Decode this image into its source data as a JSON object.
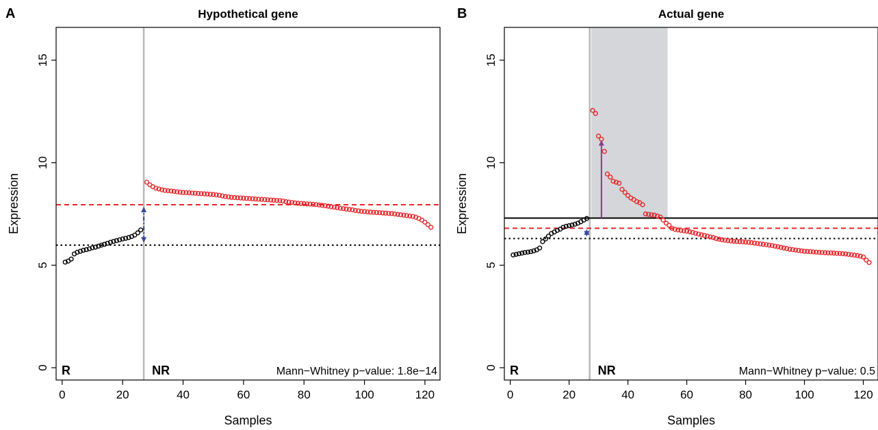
{
  "chart_data": [
    {
      "panel_label": "A",
      "type": "scatter",
      "title": "Hypothetical gene",
      "xlabel": "Samples",
      "ylabel": "Expression",
      "xlim": [
        -2,
        125
      ],
      "ylim": [
        -0.6,
        16.6
      ],
      "xticks": [
        0,
        20,
        40,
        60,
        80,
        100,
        120
      ],
      "yticks": [
        0,
        5,
        10,
        15
      ],
      "grid": false,
      "divider_x": 27,
      "group_labels": [
        "R",
        "NR"
      ],
      "annotation": "Mann−Whitney p−value: 1.8e−14",
      "hlines": [
        {
          "y": 7.95,
          "color": "#e8262a",
          "style": "dashed"
        },
        {
          "y": 5.98,
          "color": "#000000",
          "style": "dotted"
        }
      ],
      "arrows": [
        {
          "x": 27,
          "y1": 6.1,
          "y2": 7.85,
          "color": "#3b4a9e",
          "style": "dashdot",
          "double": true
        }
      ],
      "colors": {
        "R": "#000000",
        "NR": "#e8262a",
        "divider": "#b8b8b8"
      },
      "series": [
        {
          "name": "R",
          "x": [
            1,
            2,
            3,
            4,
            5,
            6,
            7,
            8,
            9,
            10,
            11,
            12,
            13,
            14,
            15,
            16,
            17,
            18,
            19,
            20,
            21,
            22,
            23,
            24,
            25,
            26
          ],
          "y": [
            5.15,
            5.2,
            5.3,
            5.55,
            5.63,
            5.68,
            5.73,
            5.76,
            5.8,
            5.85,
            5.88,
            5.93,
            5.98,
            6.02,
            6.07,
            6.12,
            6.16,
            6.2,
            6.24,
            6.28,
            6.31,
            6.35,
            6.4,
            6.47,
            6.58,
            6.72
          ]
        },
        {
          "name": "NR",
          "x": [
            28,
            29,
            30,
            31,
            32,
            33,
            34,
            35,
            36,
            37,
            38,
            39,
            40,
            41,
            42,
            43,
            44,
            45,
            46,
            47,
            48,
            49,
            50,
            51,
            52,
            53,
            54,
            55,
            56,
            57,
            58,
            59,
            60,
            61,
            62,
            63,
            64,
            65,
            66,
            67,
            68,
            69,
            70,
            71,
            72,
            73,
            74,
            75,
            76,
            77,
            78,
            79,
            80,
            81,
            82,
            83,
            84,
            85,
            86,
            87,
            88,
            89,
            90,
            91,
            92,
            93,
            94,
            95,
            96,
            97,
            98,
            99,
            100,
            101,
            102,
            103,
            104,
            105,
            106,
            107,
            108,
            109,
            110,
            111,
            112,
            113,
            114,
            115,
            116,
            117,
            118,
            119,
            120,
            121,
            122
          ],
          "y": [
            9.05,
            8.92,
            8.83,
            8.76,
            8.72,
            8.68,
            8.65,
            8.63,
            8.62,
            8.6,
            8.58,
            8.56,
            8.55,
            8.54,
            8.53,
            8.52,
            8.51,
            8.5,
            8.49,
            8.48,
            8.47,
            8.46,
            8.45,
            8.43,
            8.41,
            8.38,
            8.35,
            8.33,
            8.31,
            8.3,
            8.29,
            8.28,
            8.27,
            8.26,
            8.25,
            8.24,
            8.23,
            8.22,
            8.21,
            8.2,
            8.19,
            8.18,
            8.17,
            8.16,
            8.15,
            8.13,
            8.1,
            8.08,
            8.06,
            8.04,
            8.02,
            8.01,
            8.0,
            7.99,
            7.98,
            7.97,
            7.96,
            7.94,
            7.92,
            7.9,
            7.88,
            7.85,
            7.83,
            7.81,
            7.78,
            7.76,
            7.74,
            7.72,
            7.7,
            7.67,
            7.65,
            7.63,
            7.62,
            7.6,
            7.59,
            7.58,
            7.57,
            7.56,
            7.55,
            7.54,
            7.53,
            7.52,
            7.5,
            7.48,
            7.46,
            7.44,
            7.42,
            7.4,
            7.38,
            7.34,
            7.28,
            7.2,
            7.1,
            6.98,
            6.85
          ]
        }
      ]
    },
    {
      "panel_label": "B",
      "type": "scatter",
      "title": "Actual gene",
      "xlabel": "Samples",
      "ylabel": "Expression",
      "xlim": [
        -2,
        125
      ],
      "ylim": [
        -0.6,
        16.6
      ],
      "xticks": [
        0,
        20,
        40,
        60,
        80,
        100,
        120
      ],
      "yticks": [
        0,
        5,
        10,
        15
      ],
      "grid": false,
      "divider_x": 27,
      "shaded_x": [
        27.5,
        53.5
      ],
      "group_labels": [
        "R",
        "NR"
      ],
      "annotation": "Mann−Whitney p−value: 0.5",
      "hlines": [
        {
          "y": 7.3,
          "color": "#000000",
          "style": "solid"
        },
        {
          "y": 6.8,
          "color": "#e8262a",
          "style": "dashed"
        },
        {
          "y": 6.3,
          "color": "#000000",
          "style": "dotted"
        }
      ],
      "arrows": [
        {
          "x": 31,
          "y1": 7.3,
          "y2": 11.1,
          "color": "#8b3a8f",
          "style": "solid",
          "double": false
        },
        {
          "x": 26,
          "y1": 6.4,
          "y2": 6.75,
          "color": "#3b4a9e",
          "style": "solid",
          "double": true
        }
      ],
      "colors": {
        "R": "#000000",
        "NR": "#e8262a",
        "divider": "#b8b8b8",
        "shade": "#d4d6d9"
      },
      "series": [
        {
          "name": "R",
          "x": [
            1,
            2,
            3,
            4,
            5,
            6,
            7,
            8,
            9,
            10,
            11,
            12,
            13,
            14,
            15,
            16,
            17,
            18,
            19,
            20,
            21,
            22,
            23,
            24,
            25,
            26
          ],
          "y": [
            5.5,
            5.53,
            5.56,
            5.59,
            5.62,
            5.64,
            5.66,
            5.7,
            5.75,
            5.84,
            6.15,
            6.28,
            6.42,
            6.55,
            6.62,
            6.7,
            6.76,
            6.85,
            6.9,
            6.93,
            6.96,
            7.0,
            7.05,
            7.12,
            7.2,
            7.28
          ]
        },
        {
          "name": "NR",
          "x": [
            28,
            29,
            30,
            31,
            32,
            33,
            34,
            35,
            36,
            37,
            38,
            39,
            40,
            41,
            42,
            43,
            44,
            45,
            46,
            47,
            48,
            49,
            50,
            51,
            52,
            53,
            54,
            55,
            56,
            57,
            58,
            59,
            60,
            61,
            62,
            63,
            64,
            65,
            66,
            67,
            68,
            69,
            70,
            71,
            72,
            73,
            74,
            75,
            76,
            77,
            78,
            79,
            80,
            81,
            82,
            83,
            84,
            85,
            86,
            87,
            88,
            89,
            90,
            91,
            92,
            93,
            94,
            95,
            96,
            97,
            98,
            99,
            100,
            101,
            102,
            103,
            104,
            105,
            106,
            107,
            108,
            109,
            110,
            111,
            112,
            113,
            114,
            115,
            116,
            117,
            118,
            119,
            120,
            121,
            122
          ],
          "y": [
            12.55,
            12.4,
            11.3,
            11.15,
            10.55,
            9.45,
            9.3,
            9.1,
            9.05,
            9.0,
            8.7,
            8.55,
            8.4,
            8.28,
            8.2,
            8.1,
            8.05,
            7.95,
            7.5,
            7.48,
            7.46,
            7.44,
            7.4,
            7.35,
            7.2,
            7.05,
            6.95,
            6.8,
            6.75,
            6.72,
            6.7,
            6.68,
            6.66,
            6.63,
            6.6,
            6.56,
            6.52,
            6.48,
            6.45,
            6.42,
            6.38,
            6.35,
            6.3,
            6.27,
            6.24,
            6.22,
            6.2,
            6.18,
            6.17,
            6.16,
            6.15,
            6.14,
            6.13,
            6.12,
            6.1,
            6.08,
            6.06,
            6.04,
            6.02,
            6.0,
            5.98,
            5.96,
            5.93,
            5.9,
            5.87,
            5.84,
            5.81,
            5.78,
            5.76,
            5.74,
            5.72,
            5.7,
            5.68,
            5.67,
            5.66,
            5.65,
            5.64,
            5.63,
            5.62,
            5.61,
            5.6,
            5.6,
            5.59,
            5.58,
            5.57,
            5.56,
            5.55,
            5.53,
            5.51,
            5.49,
            5.47,
            5.44,
            5.4,
            5.25,
            5.13
          ]
        }
      ]
    }
  ]
}
